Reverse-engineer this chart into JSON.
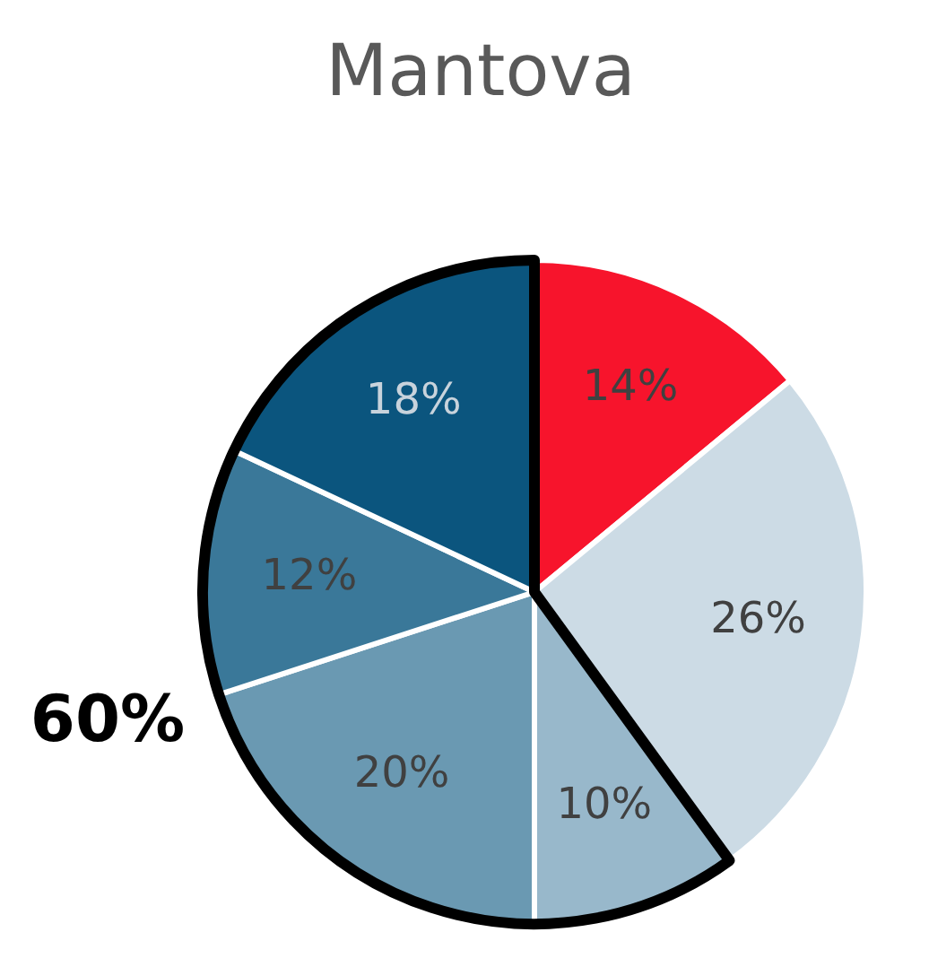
{
  "chart_data": {
    "type": "pie",
    "title": "Mantova",
    "categories": [
      null,
      null,
      null,
      null,
      null,
      null
    ],
    "values": [
      14,
      26,
      10,
      20,
      12,
      18
    ],
    "value_labels": [
      "14%",
      "26%",
      "10%",
      "20%",
      "12%",
      "18%"
    ],
    "colors": [
      "#f7142c",
      "#ccdbe5",
      "#98b8cb",
      "#6a99b2",
      "#3a7899",
      "#0b557e"
    ],
    "annotations": [
      "60%"
    ]
  }
}
